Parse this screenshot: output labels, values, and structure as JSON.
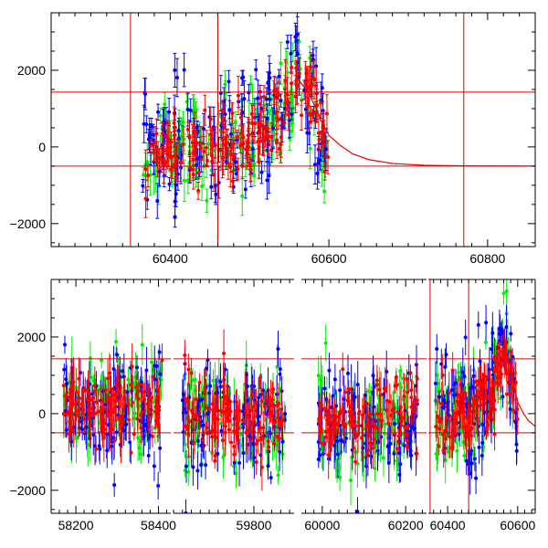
{
  "chart_data": [
    {
      "type": "scatter",
      "title": "",
      "xlabel": "",
      "ylabel": "",
      "xlim": [
        60250,
        60860
      ],
      "ylim": [
        -2600,
        3500
      ],
      "x_ticks": [
        "60400",
        "60600",
        "60800"
      ],
      "y_ticks": [
        "−2000",
        "0",
        "2000"
      ],
      "reference_lines": {
        "horizontal_y": [
          1430,
          -500
        ],
        "vertical_x": [
          60350,
          60460,
          60770
        ]
      },
      "model_curve": {
        "x": [
          60560,
          60575,
          60590,
          60600,
          60615,
          60630,
          60650,
          60680,
          60720,
          60780,
          60860
        ],
        "y": [
          1800,
          1400,
          700,
          300,
          30,
          -180,
          -330,
          -430,
          -480,
          -495,
          -500
        ]
      },
      "series": [
        {
          "color": "#00ee00",
          "x_range": [
            60365,
            60600
          ],
          "trend": [
            [
              60365,
              -100
            ],
            [
              60450,
              50
            ],
            [
              60500,
              200
            ],
            [
              60540,
              900
            ],
            [
              60560,
              1700
            ],
            [
              60580,
              1200
            ],
            [
              60600,
              -200
            ]
          ],
          "scatter": 600
        },
        {
          "color": "#0000ff",
          "x_range": [
            60365,
            60600
          ],
          "trend": [
            [
              60365,
              -100
            ],
            [
              60450,
              100
            ],
            [
              60500,
              300
            ],
            [
              60540,
              1100
            ],
            [
              60560,
              1900
            ],
            [
              60580,
              1300
            ],
            [
              60600,
              -200
            ]
          ],
          "scatter": 750
        },
        {
          "color": "#ff0000",
          "x_range": [
            60365,
            60600
          ],
          "trend": [
            [
              60365,
              -300
            ],
            [
              60450,
              -50
            ],
            [
              60500,
              150
            ],
            [
              60540,
              900
            ],
            [
              60560,
              1650
            ],
            [
              60580,
              1100
            ],
            [
              60600,
              -250
            ]
          ],
          "scatter": 500
        }
      ]
    },
    {
      "type": "scatter",
      "title": "",
      "xlabel": "",
      "ylabel": "",
      "broken_x_axis": true,
      "ylim": [
        -2600,
        3500
      ],
      "y_ticks": [
        "−2000",
        "0",
        "2000"
      ],
      "segments": [
        {
          "xlim": [
            58140,
            58430
          ],
          "x_ticks": [
            "58200",
            "58400"
          ]
        },
        {
          "xlim": [
            59620,
            59890
          ],
          "x_ticks": [
            "59800"
          ]
        },
        {
          "xlim": [
            59950,
            60250
          ],
          "x_ticks": [
            "60000",
            "60200"
          ]
        },
        {
          "xlim": [
            60345,
            60650
          ],
          "x_ticks": [
            "60400",
            "60600"
          ]
        }
      ],
      "reference_lines": {
        "horizontal_y": [
          1430,
          -500
        ],
        "vertical_x": [
          60350,
          60460
        ]
      },
      "data_ranges": [
        {
          "segment": 0,
          "x_range": [
            58170,
            58410
          ],
          "level": 200
        },
        {
          "segment": 1,
          "x_range": [
            59640,
            59870
          ],
          "level": -100
        },
        {
          "segment": 2,
          "x_range": [
            59990,
            60230
          ],
          "level": -200
        },
        {
          "segment": 3,
          "x_range": [
            60365,
            60600
          ],
          "level": 0
        }
      ],
      "series": [
        {
          "color": "#00ee00",
          "scatter": 600
        },
        {
          "color": "#0000ff",
          "scatter": 750
        },
        {
          "color": "#ff0000",
          "scatter": 500
        }
      ]
    }
  ]
}
